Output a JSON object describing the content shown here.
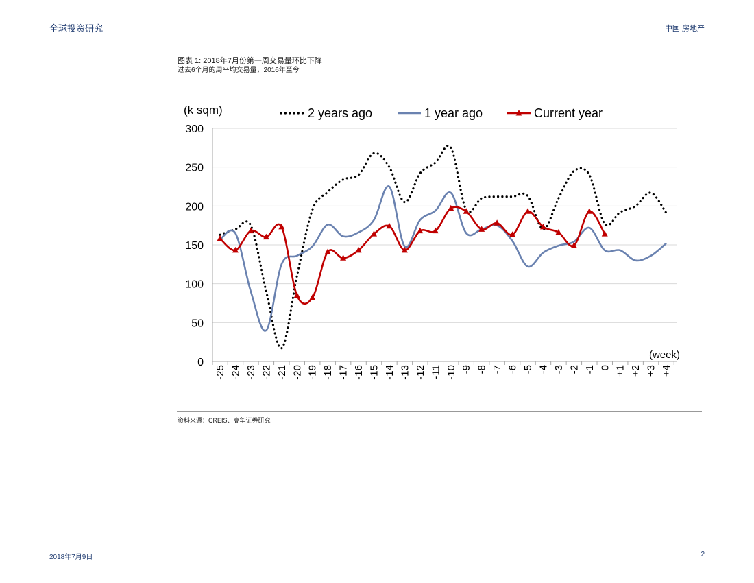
{
  "header": {
    "left": "全球投资研究",
    "right": "中国 房地产"
  },
  "figure": {
    "title": "图表 1: 2018年7月份第一周交易量环比下降",
    "subtitle": "过去6个月的周平均交易量，2016年至今",
    "source": "资料来源：CREIS、高华证券研究"
  },
  "footer": {
    "date": "2018年7月9日",
    "page": "2"
  },
  "colors": {
    "two_years_ago": "#000000",
    "one_year_ago": "#6a82b0",
    "current_year": "#c00000"
  },
  "chart_data": {
    "type": "line",
    "title": "",
    "ylabel": "(k sqm)",
    "xlabel": "(week)",
    "ylim": [
      0,
      300
    ],
    "yticks": [
      0,
      50,
      100,
      150,
      200,
      250,
      300
    ],
    "grid": true,
    "legend_position": "top",
    "categories": [
      "-25",
      "-24",
      "-23",
      "-22",
      "-21",
      "-20",
      "-19",
      "-18",
      "-17",
      "-16",
      "-15",
      "-14",
      "-13",
      "-12",
      "-11",
      "-10",
      "-9",
      "-8",
      "-7",
      "-6",
      "-5",
      "-4",
      "-3",
      "-2",
      "-1",
      "0",
      "+1",
      "+2",
      "+3",
      "+4"
    ],
    "series": [
      {
        "name": "2 years ago",
        "style": "dotted",
        "values": [
          163,
          170,
          175,
          90,
          17,
          110,
          195,
          218,
          234,
          240,
          268,
          250,
          205,
          242,
          256,
          275,
          195,
          210,
          212,
          212,
          213,
          170,
          210,
          245,
          240,
          177,
          192,
          200,
          217,
          191
        ]
      },
      {
        "name": "1 year ago",
        "style": "solid",
        "values": [
          157,
          165,
          90,
          40,
          125,
          136,
          148,
          176,
          161,
          166,
          182,
          225,
          148,
          182,
          194,
          217,
          165,
          170,
          175,
          155,
          122,
          140,
          149,
          154,
          172,
          143,
          143,
          130,
          136,
          152
        ]
      },
      {
        "name": "Current year",
        "style": "solid-triangle",
        "values": [
          158,
          143,
          168,
          160,
          173,
          85,
          82,
          141,
          133,
          143,
          164,
          174,
          143,
          168,
          168,
          197,
          193,
          170,
          178,
          163,
          193,
          173,
          166,
          149,
          193,
          164,
          null,
          null,
          null,
          null
        ]
      }
    ]
  }
}
